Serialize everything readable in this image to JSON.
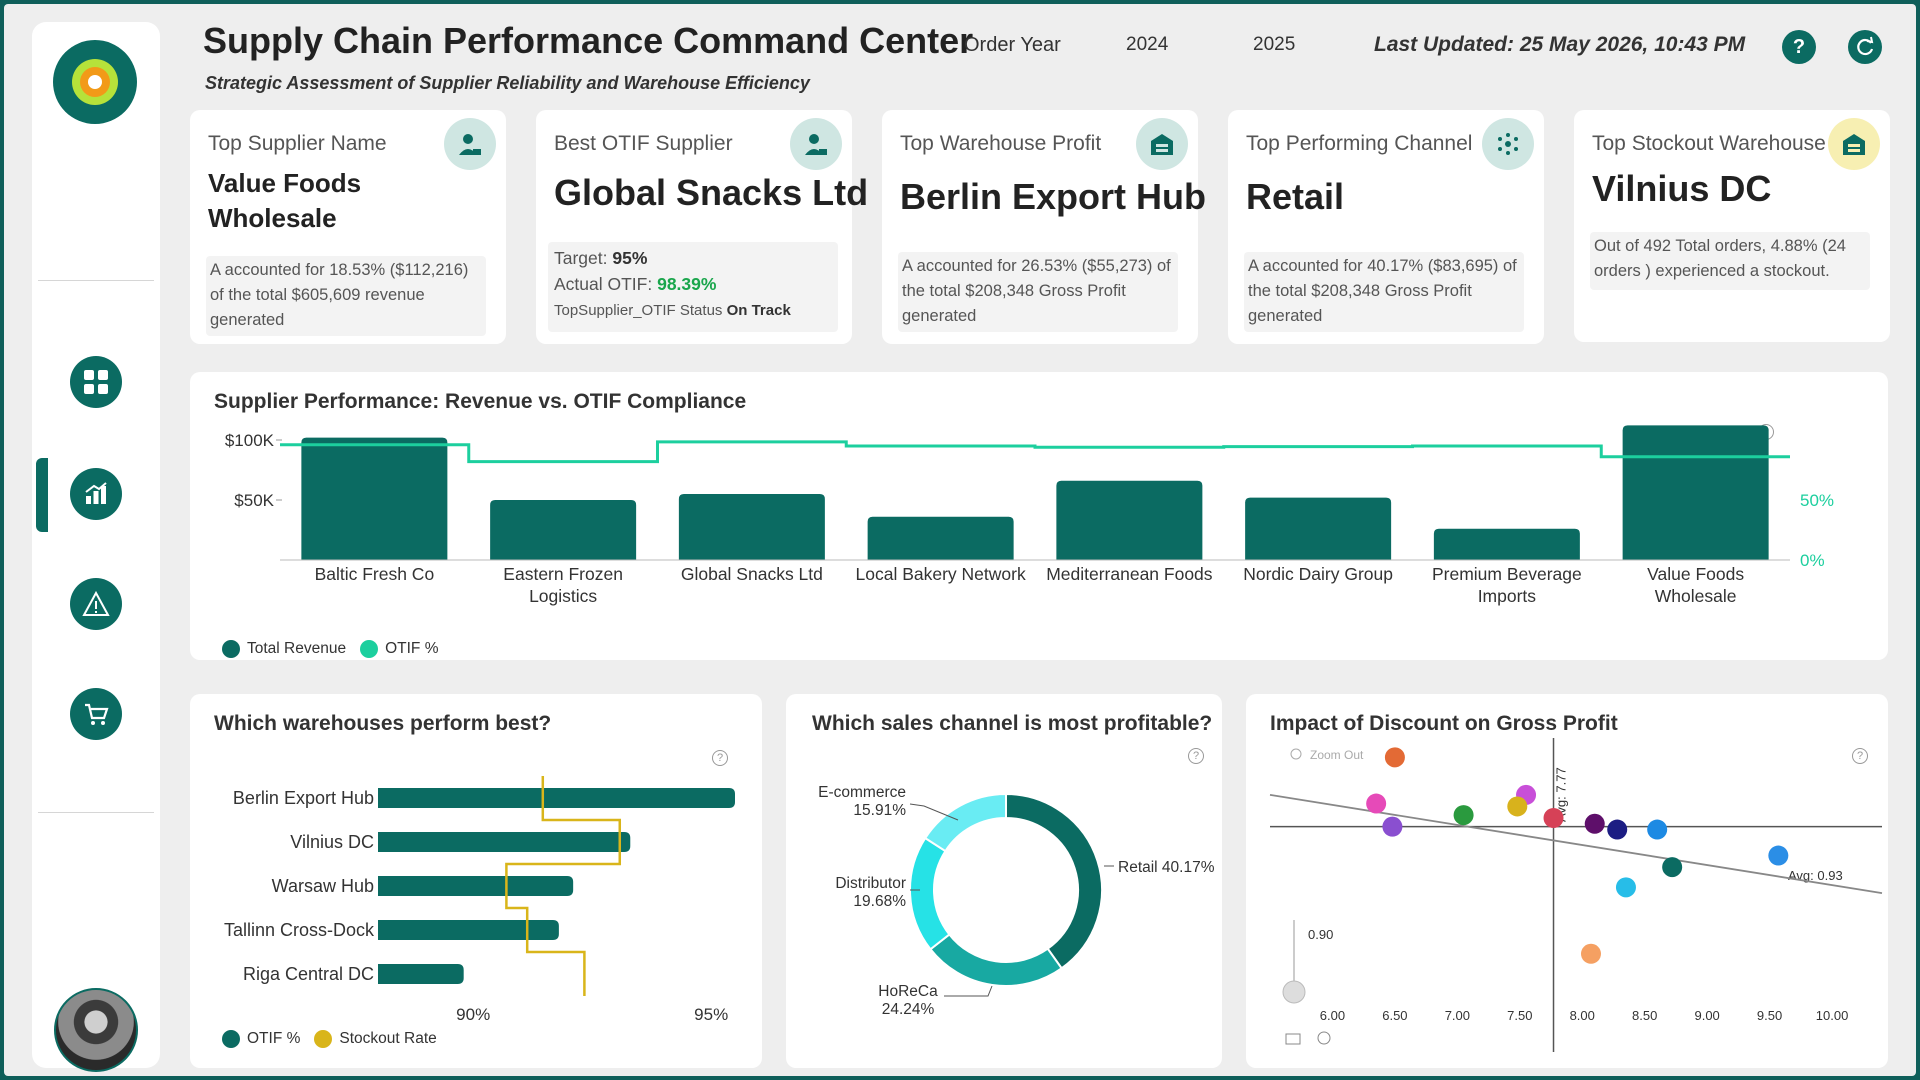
{
  "header": {
    "title": "Supply Chain Performance Command Center",
    "subtitle": "Strategic Assessment of Supplier Reliability and Warehouse Efficiency",
    "filter_label": "Order Year",
    "years": [
      "2024",
      "2025"
    ],
    "last_updated": "Last Updated: 25 May 2026, 10:43 PM",
    "help_icon": "question-icon",
    "refresh_icon": "refresh-icon"
  },
  "sidebar": {
    "nav": [
      {
        "name": "dashboard",
        "icon": "grid-icon"
      },
      {
        "name": "analytics",
        "icon": "bar-chart-icon",
        "active": true
      },
      {
        "name": "alerts",
        "icon": "warning-icon"
      },
      {
        "name": "orders",
        "icon": "cart-icon"
      }
    ]
  },
  "kpis": {
    "top_supplier": {
      "label": "Top Supplier Name",
      "value_line1": "Value Foods",
      "value_line2": "Wholesale",
      "desc": "A accounted for 18.53% ($112,216) of the total $605,609 revenue generated"
    },
    "best_otif": {
      "label": "Best OTIF Supplier",
      "value": "Global Snacks Ltd",
      "target_label": "Target:",
      "target_value": "95%",
      "actual_label": "Actual OTIF:",
      "actual_value": "98.39%",
      "status_label": "TopSupplier_OTIF Status",
      "status_value": "On Track"
    },
    "top_warehouse": {
      "label": "Top Warehouse Profit",
      "value": "Berlin Export Hub",
      "desc": "A accounted for 26.53% ($55,273) of the total $208,348 Gross Profit generated"
    },
    "top_channel": {
      "label": "Top Performing Channel",
      "value": "Retail",
      "desc": "A accounted for 40.17% ($83,695) of the total $208,348 Gross Profit generated"
    },
    "top_stockout": {
      "label": "Top Stockout Warehouse",
      "value": "Vilnius DC",
      "desc": "Out of 492 Total orders, 4.88% (24 orders ) experienced a stockout."
    }
  },
  "chart_data": [
    {
      "type": "bar",
      "title": "Supplier Performance: Revenue vs. OTIF Compliance",
      "categories": [
        "Baltic Fresh Co",
        "Eastern Frozen Logistics",
        "Global Snacks Ltd",
        "Local Bakery Network",
        "Mediterranean Foods",
        "Nordic Dairy Group",
        "Premium Beverage Imports",
        "Value Foods Wholesale"
      ],
      "category_lines": [
        [
          "Baltic Fresh Co"
        ],
        [
          "Eastern Frozen",
          "Logistics"
        ],
        [
          "Global Snacks Ltd"
        ],
        [
          "Local Bakery Network"
        ],
        [
          "Mediterranean Foods"
        ],
        [
          "Nordic Dairy Group"
        ],
        [
          "Premium Beverage",
          "Imports"
        ],
        [
          "Value Foods",
          "Wholesale"
        ]
      ],
      "series": [
        {
          "name": "Total Revenue",
          "axis": "left",
          "values": [
            102000,
            50000,
            55000,
            36000,
            66000,
            52000,
            26000,
            112216
          ],
          "color": "#0b6b62"
        },
        {
          "name": "OTIF %",
          "axis": "right",
          "render": "step",
          "values": [
            96,
            82,
            98.39,
            95,
            94,
            94.5,
            95,
            86
          ],
          "color": "#1ccf9e"
        }
      ],
      "y_ticks": [
        "$50K",
        "$100K"
      ],
      "y2_ticks": [
        "0%",
        "50%"
      ],
      "ylim": [
        0,
        115000
      ],
      "y2lim": [
        0,
        115
      ],
      "legend": "bottom-left"
    },
    {
      "type": "bar",
      "orientation": "horizontal",
      "title": "Which warehouses perform best?",
      "categories": [
        "Berlin Export Hub",
        "Vilnius DC",
        "Warsaw Hub",
        "Tallinn Cross-Dock",
        "Riga Central DC"
      ],
      "series": [
        {
          "name": "OTIF %",
          "values": [
            95.5,
            93.3,
            92.1,
            91.8,
            89.8
          ],
          "color": "#0b6b62"
        },
        {
          "name": "Stockout Rate",
          "render": "step",
          "values": [
            3.4,
            4.88,
            2.7,
            3.1,
            4.2
          ],
          "color": "#d9b51a"
        }
      ],
      "x_ticks": [
        "90%",
        "95%"
      ],
      "xlim": [
        88,
        97
      ],
      "legend": "bottom-left"
    },
    {
      "type": "pie",
      "subtype": "donut",
      "title": "Which sales channel is most profitable?",
      "slices": [
        {
          "label": "Retail",
          "value": 40.17,
          "text": "40.17%",
          "color": "#0b6b62"
        },
        {
          "label": "HoReCa",
          "value": 24.24,
          "text": "24.24%",
          "color": "#18a9a2"
        },
        {
          "label": "Distributor",
          "value": 19.68,
          "text": "19.68%",
          "color": "#26e2e6"
        },
        {
          "label": "E-commerce",
          "value": 15.91,
          "text": "15.91%",
          "color": "#69ecf3"
        }
      ]
    },
    {
      "type": "scatter",
      "title": "Impact of Discount on Gross Profit",
      "x_ticks": [
        "6.00",
        "6.50",
        "7.00",
        "7.50",
        "8.00",
        "8.50",
        "9.00",
        "9.50",
        "10.00"
      ],
      "y_tick": "0.90",
      "xlim": [
        5.5,
        10.4
      ],
      "ylim": [
        0.87,
        0.96
      ],
      "avg_x_label": "Avg: 7.77",
      "avg_y_label": "Avg: 0.93",
      "avg_x": 7.77,
      "avg_y": 0.93,
      "zoom_label": "Zoom Out",
      "points": [
        {
          "x": 6.5,
          "y": 0.954,
          "color": "#e36a35"
        },
        {
          "x": 6.35,
          "y": 0.938,
          "color": "#e64ab8"
        },
        {
          "x": 6.48,
          "y": 0.93,
          "color": "#8a4fd0"
        },
        {
          "x": 7.05,
          "y": 0.934,
          "color": "#2a9a3e"
        },
        {
          "x": 7.55,
          "y": 0.941,
          "color": "#c84fd8"
        },
        {
          "x": 7.48,
          "y": 0.937,
          "color": "#d8b21c"
        },
        {
          "x": 7.77,
          "y": 0.933,
          "color": "#d64157"
        },
        {
          "x": 8.1,
          "y": 0.931,
          "color": "#5e0f6a"
        },
        {
          "x": 8.28,
          "y": 0.929,
          "color": "#1c1d83"
        },
        {
          "x": 8.6,
          "y": 0.929,
          "color": "#1d8ae3"
        },
        {
          "x": 8.72,
          "y": 0.916,
          "color": "#0b6b62"
        },
        {
          "x": 9.57,
          "y": 0.92,
          "color": "#2b8ee6"
        },
        {
          "x": 8.35,
          "y": 0.909,
          "color": "#27bde8"
        },
        {
          "x": 8.07,
          "y": 0.886,
          "color": "#f5a062"
        }
      ],
      "trend": [
        {
          "x": 5.5,
          "y": 0.941
        },
        {
          "x": 10.4,
          "y": 0.907
        }
      ]
    }
  ],
  "legends": {
    "supplier": [
      "Total Revenue",
      "OTIF %"
    ],
    "warehouse": [
      "OTIF %",
      "Stockout Rate"
    ]
  }
}
